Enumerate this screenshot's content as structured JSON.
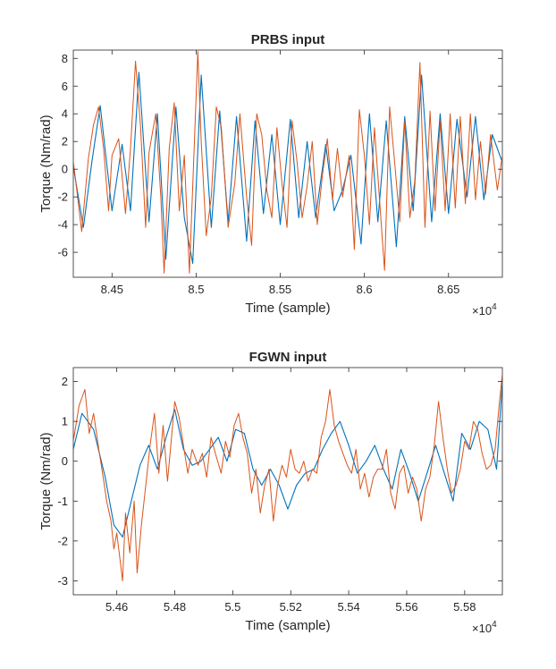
{
  "colors": {
    "series_blue": "#0072bd",
    "series_orange": "#d95319",
    "axes": "#262626",
    "background": "#ffffff"
  },
  "chart_data": [
    {
      "type": "line",
      "title": "PRBS input",
      "xlabel": "Time (sample)",
      "ylabel": "Torque (Nm/rad)",
      "x_exponent_label": "×10",
      "x_exponent_power": "4",
      "xlim": [
        84270,
        86820
      ],
      "ylim": [
        -7.8,
        8.6
      ],
      "xticks": [
        84500,
        85000,
        85500,
        86000,
        86500
      ],
      "xtick_labels": [
        "8.45",
        "8.5",
        "8.55",
        "8.6",
        "8.65"
      ],
      "yticks": [
        -6,
        -4,
        -2,
        0,
        2,
        4,
        6,
        8
      ],
      "ytick_labels": [
        "-6",
        "-4",
        "-2",
        "0",
        "2",
        "4",
        "6",
        "8"
      ],
      "grid": false,
      "series": [
        {
          "color": "#0072bd",
          "x": [
            84270,
            84330,
            84380,
            84430,
            84500,
            84560,
            84610,
            84660,
            84720,
            84770,
            84820,
            84880,
            84930,
            84980,
            85030,
            85090,
            85140,
            85190,
            85240,
            85300,
            85350,
            85400,
            85450,
            85500,
            85560,
            85610,
            85660,
            85710,
            85770,
            85820,
            85870,
            85920,
            85980,
            86030,
            86080,
            86130,
            86190,
            86240,
            86290,
            86340,
            86400,
            86450,
            86500,
            86550,
            86610,
            86660,
            86710,
            86760,
            86820
          ],
          "y": [
            0.2,
            -4.2,
            0.5,
            4.6,
            -3.0,
            1.8,
            -3.0,
            7.0,
            -3.8,
            4.0,
            -6.5,
            4.5,
            -3.5,
            -6.8,
            6.8,
            -4.2,
            4.2,
            -3.8,
            3.8,
            -5.2,
            3.5,
            -3.2,
            2.5,
            -4.0,
            3.6,
            -3.5,
            2.0,
            -3.5,
            1.8,
            -3.0,
            -1.5,
            1.0,
            -5.4,
            4.0,
            -3.8,
            3.5,
            -5.6,
            3.8,
            -3.0,
            6.8,
            -3.8,
            4.0,
            -3.2,
            3.6,
            -2.0,
            3.8,
            -2.2,
            2.5,
            0.5
          ]
        },
        {
          "color": "#d95319",
          "x": [
            84270,
            84320,
            84360,
            84390,
            84420,
            84450,
            84480,
            84500,
            84540,
            84580,
            84610,
            84640,
            84670,
            84700,
            84720,
            84760,
            84790,
            84810,
            84840,
            84870,
            84900,
            84930,
            84960,
            84990,
            85010,
            85030,
            85060,
            85090,
            85120,
            85150,
            85190,
            85230,
            85260,
            85300,
            85330,
            85360,
            85390,
            85420,
            85450,
            85480,
            85510,
            85540,
            85570,
            85600,
            85630,
            85660,
            85690,
            85720,
            85750,
            85780,
            85810,
            85840,
            85870,
            85910,
            85940,
            85970,
            86000,
            86030,
            86060,
            86090,
            86120,
            86150,
            86180,
            86210,
            86240,
            86270,
            86300,
            86330,
            86360,
            86390,
            86420,
            86450,
            86480,
            86510,
            86540,
            86570,
            86600,
            86630,
            86660,
            86690,
            86720,
            86750,
            86790,
            86820
          ],
          "y": [
            0.6,
            -4.5,
            0.8,
            3.2,
            4.5,
            1.5,
            -3.0,
            1.0,
            2.2,
            -3.2,
            1.5,
            7.8,
            3.0,
            -4.2,
            1.2,
            4.0,
            -2.0,
            -7.5,
            1.5,
            4.8,
            -3.0,
            1.0,
            -7.5,
            2.0,
            8.5,
            2.0,
            -4.8,
            -2.0,
            4.5,
            3.0,
            -4.2,
            -1.0,
            4.0,
            -2.0,
            -5.5,
            4.0,
            2.5,
            -1.5,
            -3.5,
            3.0,
            -1.0,
            -4.2,
            3.5,
            0.5,
            -3.5,
            -1.2,
            2.0,
            -4.0,
            -0.5,
            2.2,
            -2.2,
            1.5,
            -2.0,
            1.0,
            -5.8,
            4.3,
            1.0,
            -4.0,
            3.0,
            -2.2,
            -7.3,
            4.5,
            0.5,
            -3.8,
            3.5,
            -3.5,
            -0.8,
            7.7,
            -4.2,
            4.2,
            -3.0,
            3.5,
            -3.0,
            4.0,
            -2.8,
            3.8,
            -2.5,
            4.0,
            -2.2,
            2.0,
            -1.8,
            2.5,
            -1.5,
            1.0
          ]
        }
      ]
    },
    {
      "type": "line",
      "title": "FGWN input",
      "xlabel": "Time (sample)",
      "ylabel": "Torque (Nm/rad)",
      "x_exponent_label": "×10",
      "x_exponent_power": "4",
      "xlim": [
        54450,
        55930
      ],
      "ylim": [
        -3.35,
        2.35
      ],
      "xticks": [
        54600,
        54800,
        55000,
        55200,
        55400,
        55600,
        55800
      ],
      "xtick_labels": [
        "5.46",
        "5.48",
        "5.5",
        "5.52",
        "5.54",
        "5.56",
        "5.58"
      ],
      "yticks": [
        -3,
        -2,
        -1,
        0,
        1,
        2
      ],
      "ytick_labels": [
        "-3",
        "-2",
        "-1",
        "0",
        "1",
        "2"
      ],
      "grid": false,
      "series": [
        {
          "color": "#0072bd",
          "x": [
            54450,
            54480,
            54520,
            54560,
            54590,
            54620,
            54650,
            54680,
            54710,
            54740,
            54770,
            54800,
            54830,
            54860,
            54890,
            54920,
            54950,
            54980,
            55010,
            55040,
            55070,
            55100,
            55130,
            55160,
            55190,
            55220,
            55250,
            55280,
            55310,
            55340,
            55370,
            55400,
            55430,
            55460,
            55490,
            55520,
            55550,
            55580,
            55610,
            55640,
            55670,
            55700,
            55730,
            55760,
            55790,
            55820,
            55850,
            55880,
            55910,
            55930
          ],
          "y": [
            0.3,
            1.2,
            0.8,
            -0.4,
            -1.6,
            -1.9,
            -1.0,
            -0.1,
            0.4,
            -0.2,
            0.6,
            1.3,
            0.3,
            -0.1,
            0.0,
            0.3,
            0.6,
            0.0,
            0.8,
            0.7,
            -0.2,
            -0.6,
            -0.2,
            -0.6,
            -1.2,
            -0.6,
            -0.3,
            -0.2,
            0.3,
            0.7,
            1.0,
            0.4,
            -0.3,
            0.0,
            0.4,
            -0.2,
            -0.7,
            0.3,
            -0.3,
            -1.0,
            -0.3,
            0.4,
            -0.3,
            -1.0,
            0.7,
            0.3,
            1.0,
            0.8,
            -0.2,
            2.0
          ]
        },
        {
          "color": "#d95319",
          "x": [
            54450,
            54470,
            54490,
            54505,
            54520,
            54540,
            54555,
            54565,
            54580,
            54590,
            54600,
            54610,
            54620,
            54630,
            54645,
            54660,
            54670,
            54685,
            54700,
            54715,
            54730,
            54745,
            54760,
            54775,
            54790,
            54800,
            54815,
            54830,
            54845,
            54860,
            54880,
            54895,
            54910,
            54925,
            54940,
            54960,
            54975,
            54990,
            55005,
            55020,
            55035,
            55050,
            55065,
            55080,
            55095,
            55110,
            55125,
            55140,
            55155,
            55170,
            55185,
            55200,
            55215,
            55230,
            55245,
            55260,
            55275,
            55290,
            55305,
            55320,
            55335,
            55350,
            55365,
            55380,
            55395,
            55410,
            55425,
            55440,
            55455,
            55470,
            55485,
            55500,
            55515,
            55530,
            55545,
            55560,
            55575,
            55590,
            55605,
            55620,
            55635,
            55650,
            55665,
            55680,
            55695,
            55710,
            55725,
            55740,
            55755,
            55770,
            55785,
            55800,
            55815,
            55830,
            55845,
            55860,
            55875,
            55890,
            55905,
            55920,
            55930
          ],
          "y": [
            0.5,
            1.4,
            1.8,
            0.7,
            1.2,
            0.2,
            -0.5,
            -1.0,
            -1.5,
            -2.2,
            -1.8,
            -2.4,
            -3.0,
            -1.3,
            -2.3,
            -1.0,
            -2.8,
            -1.6,
            -0.6,
            0.4,
            1.2,
            -0.3,
            0.9,
            -0.5,
            0.7,
            1.5,
            1.1,
            0.4,
            -0.3,
            0.3,
            -0.1,
            0.2,
            -0.4,
            0.6,
            0.2,
            -0.3,
            0.5,
            0.1,
            0.9,
            1.2,
            0.6,
            0.2,
            -0.8,
            -0.2,
            -1.3,
            -0.6,
            -0.2,
            -1.5,
            -0.6,
            -0.1,
            -0.4,
            0.3,
            -0.2,
            -0.3,
            0.0,
            -0.5,
            -0.2,
            -0.3,
            0.6,
            1.0,
            1.8,
            0.9,
            0.5,
            0.2,
            -0.1,
            -0.3,
            0.3,
            -0.7,
            -0.3,
            -0.9,
            -0.4,
            -0.2,
            -0.2,
            0.3,
            -0.8,
            -1.2,
            -0.3,
            -0.1,
            -0.8,
            -0.4,
            -0.7,
            -1.5,
            -0.7,
            -0.4,
            0.4,
            1.5,
            0.6,
            -0.2,
            -0.8,
            -0.6,
            -0.2,
            0.5,
            0.3,
            1.0,
            0.8,
            0.2,
            -0.2,
            -0.1,
            0.3,
            1.5,
            2.2
          ]
        }
      ]
    }
  ]
}
